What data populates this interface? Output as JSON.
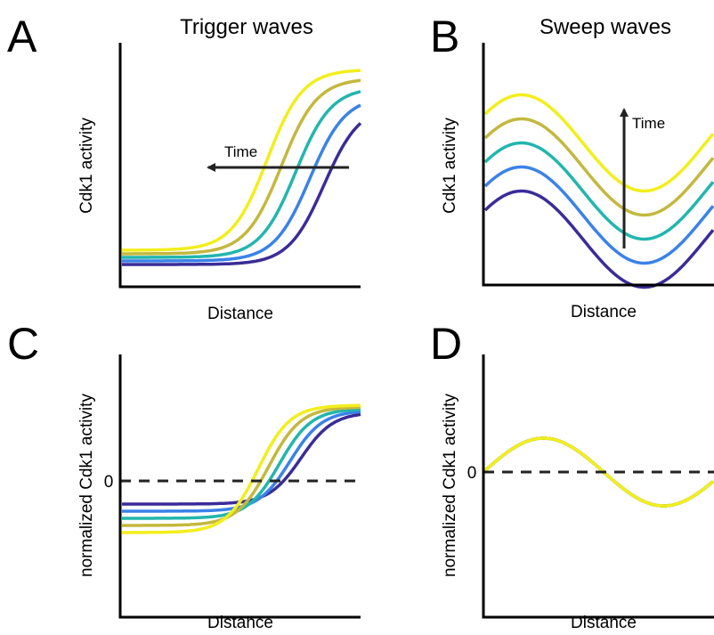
{
  "panels": [
    {
      "letter": "A",
      "title": "Trigger waves",
      "y_label": "Cdk1 activity",
      "x_label": "Distance",
      "annotation": "Time"
    },
    {
      "letter": "B",
      "title": "Sweep waves",
      "y_label": "Cdk1 activity",
      "x_label": "Distance",
      "annotation": "Time"
    },
    {
      "letter": "C",
      "y_label": "normalized Cdk1 activity",
      "x_label": "Distance",
      "zero_label": "0"
    },
    {
      "letter": "D",
      "y_label": "normalized Cdk1 activity",
      "x_label": "Distance",
      "zero_label": "0"
    }
  ],
  "curve_colors": [
    "#f2ee1c",
    "#c4b83e",
    "#22b6ad",
    "#3b82e8",
    "#3a2c98"
  ]
}
